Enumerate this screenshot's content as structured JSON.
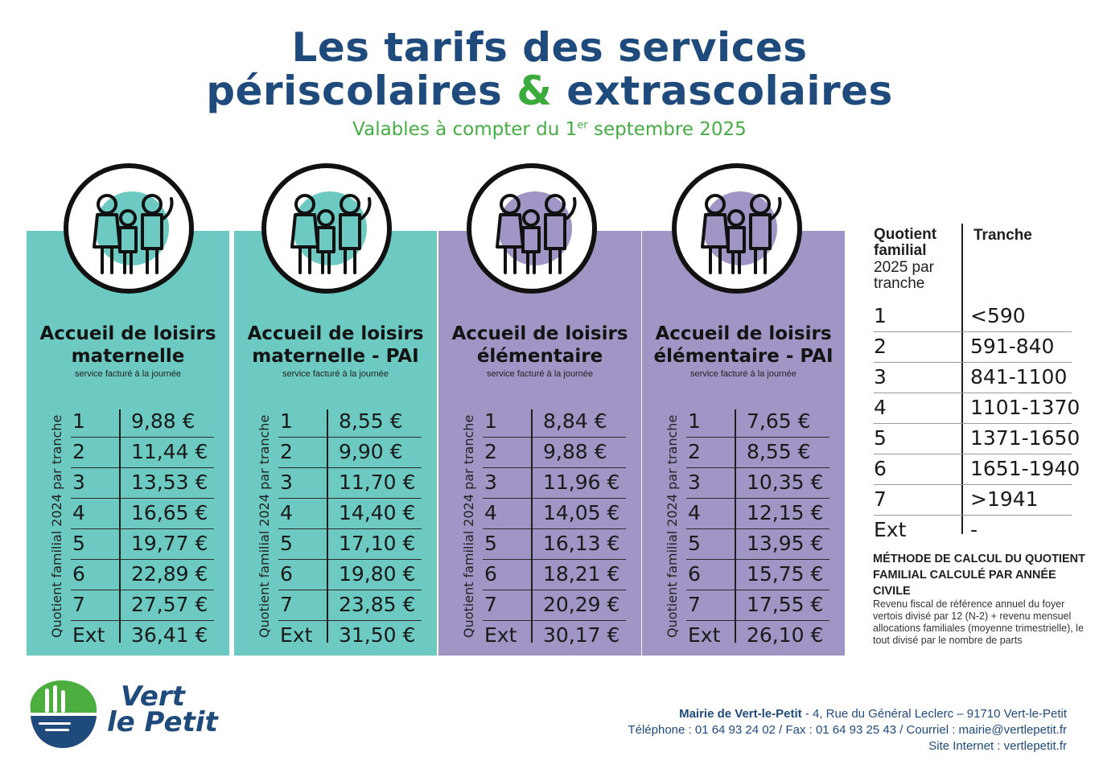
{
  "header": {
    "title_line1": "Les tarifs des services",
    "title_line2_a": "périscolaires",
    "title_line2_amp": "&",
    "title_line2_b": "extrascolaires",
    "subtitle_a": "Valables à compter du 1",
    "subtitle_sup": "er",
    "subtitle_b": " septembre 2025"
  },
  "cards": [
    {
      "title_l1": "Accueil de loisirs",
      "title_l2": "maternelle",
      "subtitle": "service facturé à la journée",
      "axis_label": "Quotient familial 2024 par tranche",
      "rows": [
        {
          "tranche": "1",
          "price": "9,88 €"
        },
        {
          "tranche": "2",
          "price": "11,44 €"
        },
        {
          "tranche": "3",
          "price": "13,53 €"
        },
        {
          "tranche": "4",
          "price": "16,65 €"
        },
        {
          "tranche": "5",
          "price": "19,77 €"
        },
        {
          "tranche": "6",
          "price": "22,89 €"
        },
        {
          "tranche": "7",
          "price": "27,57 €"
        },
        {
          "tranche": "Ext",
          "price": "36,41 €"
        }
      ]
    },
    {
      "title_l1": "Accueil de loisirs",
      "title_l2": "maternelle - PAI",
      "subtitle": "service facturé à la journée",
      "axis_label": "Quotient familial 2024 par tranche",
      "rows": [
        {
          "tranche": "1",
          "price": "8,55 €"
        },
        {
          "tranche": "2",
          "price": "9,90 €"
        },
        {
          "tranche": "3",
          "price": "11,70 €"
        },
        {
          "tranche": "4",
          "price": "14,40 €"
        },
        {
          "tranche": "5",
          "price": "17,10 €"
        },
        {
          "tranche": "6",
          "price": "19,80 €"
        },
        {
          "tranche": "7",
          "price": "23,85 €"
        },
        {
          "tranche": "Ext",
          "price": "31,50 €"
        }
      ]
    },
    {
      "title_l1": "Accueil de loisirs",
      "title_l2": "élémentaire",
      "subtitle": "service facturé à la journée",
      "axis_label": "Quotient familial 2024 par tranche",
      "rows": [
        {
          "tranche": "1",
          "price": "8,84 €"
        },
        {
          "tranche": "2",
          "price": "9,88 €"
        },
        {
          "tranche": "3",
          "price": "11,96 €"
        },
        {
          "tranche": "4",
          "price": "14,05 €"
        },
        {
          "tranche": "5",
          "price": "16,13 €"
        },
        {
          "tranche": "6",
          "price": "18,21 €"
        },
        {
          "tranche": "7",
          "price": "20,29 €"
        },
        {
          "tranche": "Ext",
          "price": "30,17 €"
        }
      ]
    },
    {
      "title_l1": "Accueil de loisirs",
      "title_l2": "élémentaire - PAI",
      "subtitle": "service facturé à la journée",
      "axis_label": "Quotient familial 2024 par tranche",
      "rows": [
        {
          "tranche": "1",
          "price": "7,65 €"
        },
        {
          "tranche": "2",
          "price": "8,55 €"
        },
        {
          "tranche": "3",
          "price": "10,35 €"
        },
        {
          "tranche": "4",
          "price": "12,15 €"
        },
        {
          "tranche": "5",
          "price": "13,95 €"
        },
        {
          "tranche": "6",
          "price": "15,75 €"
        },
        {
          "tranche": "7",
          "price": "17,55 €"
        },
        {
          "tranche": "Ext",
          "price": "26,10 €"
        }
      ]
    }
  ],
  "colors": {
    "title_blue": "#1f4a7c",
    "green": "#3aab3c",
    "teal": "#6ccac3",
    "purple": "#a095c4"
  },
  "icons": [
    "family-icon"
  ],
  "quotient_table": {
    "head_bold": "Quotient familial",
    "head_rest": "2025 par tranche",
    "head_tranche": "Tranche",
    "rows": [
      {
        "tranche": "1",
        "range": "<590"
      },
      {
        "tranche": "2",
        "range": "591-840"
      },
      {
        "tranche": "3",
        "range": "841-1100"
      },
      {
        "tranche": "4",
        "range": "1101-1370"
      },
      {
        "tranche": "5",
        "range": "1371-1650"
      },
      {
        "tranche": "6",
        "range": "1651-1940"
      },
      {
        "tranche": "7",
        "range": ">1941"
      },
      {
        "tranche": "Ext",
        "range": "-"
      }
    ]
  },
  "method": {
    "title": "MÉTHODE DE CALCUL DU QUOTIENT FAMILIAL CALCULÉ PAR ANNÉE CIVILE",
    "body": "Revenu fiscal de référence annuel du foyer vertois divisé par 12 (N-2) + revenu mensuel allocations familiales (moyenne trimestrielle), le tout divisé par le nombre de parts"
  },
  "logo": {
    "line1": "Vert",
    "line2": "le Petit"
  },
  "footer": {
    "mairie_name": "Mairie de Vert-le-Petit",
    "address": " - 4, Rue du Général Leclerc – 91710 Vert-le-Petit",
    "contact": "Téléphone : 01 64 93 24 02 / Fax : 01 64 93 25 43 / Courriel : mairie@vertlepetit.fr",
    "site": "Site Internet : vertlepetit.fr"
  }
}
